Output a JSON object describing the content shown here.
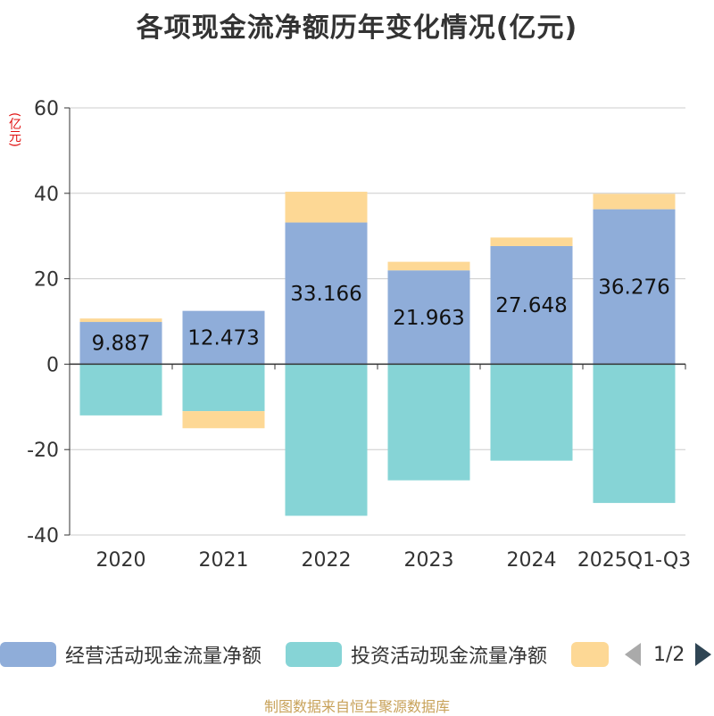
{
  "chart_data": {
    "type": "bar",
    "stacked": true,
    "title": "各项现金流净额历年变化情况(亿元)",
    "ylabel": "(亿元)",
    "ylim": [
      -40,
      60
    ],
    "yticks": [
      -40,
      -20,
      0,
      20,
      40,
      60
    ],
    "grid": true,
    "categories": [
      "2020",
      "2021",
      "2022",
      "2023",
      "2024",
      "2025Q1-Q3"
    ],
    "series": [
      {
        "name": "经营活动现金流量净额",
        "color": "#8fadd9",
        "values": [
          9.887,
          12.473,
          33.166,
          21.963,
          27.648,
          36.276
        ],
        "labels": [
          "9.887",
          "12.473",
          "33.166",
          "21.963",
          "27.648",
          "36.276"
        ]
      },
      {
        "name": "投资活动现金流量净额",
        "color": "#86d4d6",
        "values": [
          -12.0,
          -11.0,
          -35.5,
          -27.2,
          -22.6,
          -32.5
        ]
      },
      {
        "name": "",
        "color": "#fdd895",
        "values": [
          0.8,
          -4.0,
          7.2,
          2.0,
          2.0,
          3.6
        ]
      }
    ],
    "legend_position": "bottom"
  },
  "legend": {
    "items": [
      {
        "label": "经营活动现金流量净额",
        "color": "#8fadd9"
      },
      {
        "label": "投资活动现金流量净额",
        "color": "#86d4d6"
      },
      {
        "label": "",
        "color": "#fdd895"
      }
    ],
    "page_text": "1/2"
  },
  "source": "制图数据来自恒生聚源数据库"
}
